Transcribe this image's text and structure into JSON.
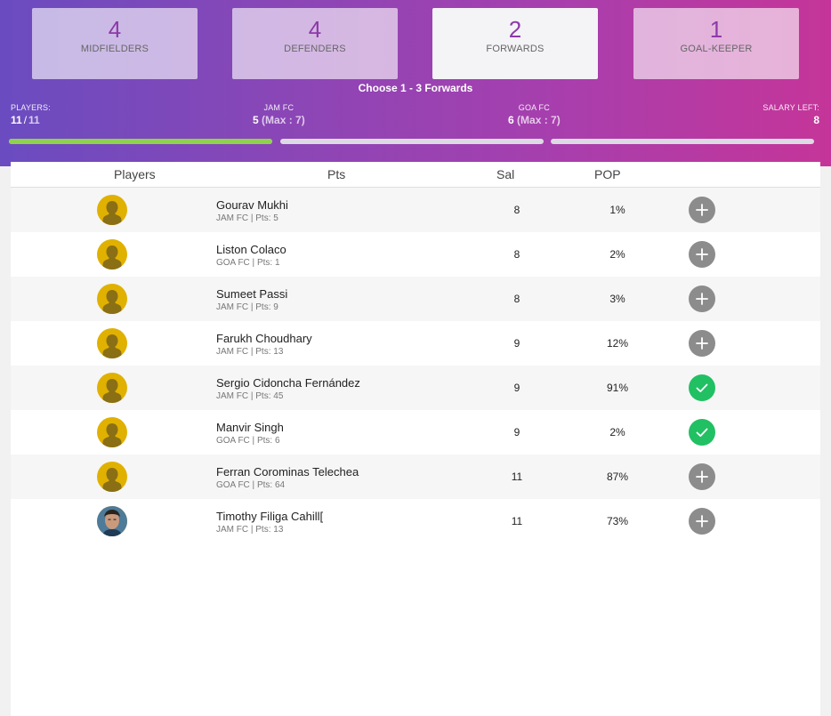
{
  "tabs": [
    {
      "count": "4",
      "label": "MIDFIELDERS"
    },
    {
      "count": "4",
      "label": "DEFENDERS"
    },
    {
      "count": "2",
      "label": "FORWARDS"
    },
    {
      "count": "1",
      "label": "GOAL-KEEPER"
    }
  ],
  "choose_text": "Choose 1 - 3 Forwards",
  "stats": {
    "players_label": "PLAYERS:",
    "players_selected": "11",
    "players_separator": "/",
    "players_total": "11",
    "team1_label": "JAM FC",
    "team1_count": "5",
    "team1_max": "(Max : 7)",
    "team2_label": "GOA FC",
    "team2_count": "6",
    "team2_max": "(Max : 7)",
    "salary_label": "SALARY LEFT:",
    "salary_value": "8"
  },
  "progress": [
    1.0,
    0.0,
    0.0
  ],
  "table": {
    "headers": {
      "players": "Players",
      "pts": "Pts",
      "sal": "Sal",
      "pop": "POP"
    },
    "rows": [
      {
        "name": "Gourav Mukhi",
        "meta": "JAM FC | Pts: 5",
        "sal": "8",
        "pop": "1%",
        "selected": false
      },
      {
        "name": "Liston Colaco",
        "meta": "GOA FC | Pts: 1",
        "sal": "8",
        "pop": "2%",
        "selected": false
      },
      {
        "name": "Sumeet Passi",
        "meta": "JAM FC | Pts: 9",
        "sal": "8",
        "pop": "3%",
        "selected": false
      },
      {
        "name": "Farukh Choudhary",
        "meta": "JAM FC | Pts: 13",
        "sal": "9",
        "pop": "12%",
        "selected": false
      },
      {
        "name": "Sergio Cidoncha Fernández",
        "meta": "JAM FC | Pts: 45",
        "sal": "9",
        "pop": "91%",
        "selected": true
      },
      {
        "name": "Manvir Singh",
        "meta": "GOA FC | Pts: 6",
        "sal": "9",
        "pop": "2%",
        "selected": true
      },
      {
        "name": "Ferran Corominas Telechea",
        "meta": "GOA FC | Pts: 64",
        "sal": "11",
        "pop": "87%",
        "selected": false
      },
      {
        "name": "Timothy Filiga Cahill[",
        "meta": "JAM FC | Pts: 13",
        "sal": "11",
        "pop": "73%",
        "selected": false,
        "photo": true
      }
    ]
  },
  "icons": {
    "placeholder_avatar": "user-silhouette-icon",
    "add": "plus-icon",
    "selected": "check-icon"
  },
  "colors": {
    "accent": "#8d3aa9",
    "progress_fill": "#8fd24b",
    "selected_button": "#21c063",
    "add_button": "#8c8c8c",
    "avatar_bg": "#e0b100"
  }
}
